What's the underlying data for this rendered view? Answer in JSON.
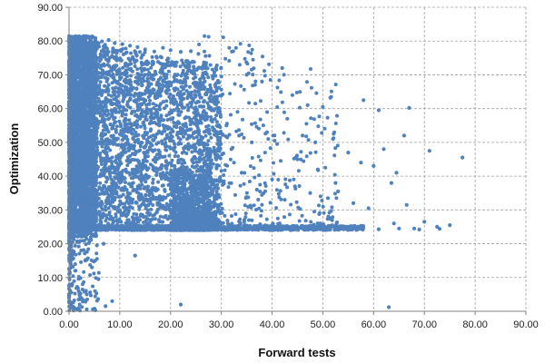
{
  "chart_data": {
    "type": "scatter",
    "title": "",
    "xlabel": "Forward tests",
    "ylabel": "Optimization",
    "xlim": [
      0,
      90
    ],
    "ylim": [
      0,
      90
    ],
    "x_ticks": [
      "0.00",
      "10.00",
      "20.00",
      "30.00",
      "40.00",
      "50.00",
      "60.00",
      "70.00",
      "80.00",
      "90.00"
    ],
    "y_ticks": [
      "0.00",
      "10.00",
      "20.00",
      "30.00",
      "40.00",
      "50.00",
      "60.00",
      "70.00",
      "80.00",
      "90.00"
    ],
    "grid": true,
    "legend": "none",
    "marker_color": "#4F81BD",
    "gridline_color": "#A0A0A0",
    "series": [
      {
        "points": [
          [
            1.0,
            80.5
          ],
          [
            1.5,
            81.2
          ],
          [
            2.3,
            79.8
          ],
          [
            3.1,
            80.6
          ],
          [
            4.0,
            79.5
          ],
          [
            5.2,
            80.1
          ],
          [
            6.5,
            79.9
          ],
          [
            7.8,
            80.3
          ],
          [
            9.0,
            79.4
          ],
          [
            10.5,
            79.1
          ],
          [
            12.0,
            78.6
          ],
          [
            13.5,
            78.2
          ],
          [
            15.0,
            77.5
          ],
          [
            16.8,
            76.9
          ],
          [
            18.5,
            78.0
          ],
          [
            20.0,
            77.3
          ],
          [
            22.0,
            76.8
          ],
          [
            24.0,
            77.0
          ],
          [
            25.5,
            76.2
          ],
          [
            27.0,
            73.5
          ],
          [
            2.0,
            75.0
          ],
          [
            4.5,
            72.0
          ],
          [
            7.0,
            70.5
          ],
          [
            9.5,
            68.0
          ],
          [
            12.5,
            71.0
          ],
          [
            15.5,
            69.0
          ],
          [
            18.0,
            65.5
          ],
          [
            21.0,
            66.0
          ],
          [
            24.5,
            67.5
          ],
          [
            26.5,
            62.0
          ],
          [
            30.0,
            69.5
          ],
          [
            35.0,
            70.0
          ],
          [
            38.0,
            68.0
          ],
          [
            42.0,
            72.0
          ],
          [
            44.0,
            64.0
          ],
          [
            47.0,
            61.0
          ],
          [
            50.0,
            60.5
          ],
          [
            58.0,
            62.5
          ],
          [
            61.0,
            59.5
          ],
          [
            67.0,
            60.2
          ],
          [
            3.0,
            65.0
          ],
          [
            6.0,
            60.0
          ],
          [
            8.5,
            58.0
          ],
          [
            11.0,
            55.0
          ],
          [
            14.0,
            57.0
          ],
          [
            17.0,
            52.0
          ],
          [
            19.5,
            54.0
          ],
          [
            23.0,
            55.5
          ],
          [
            26.0,
            51.0
          ],
          [
            29.0,
            58.0
          ],
          [
            31.0,
            55.0
          ],
          [
            33.5,
            52.0
          ],
          [
            36.0,
            50.0
          ],
          [
            39.0,
            53.0
          ],
          [
            41.0,
            49.5
          ],
          [
            43.0,
            57.0
          ],
          [
            46.0,
            52.0
          ],
          [
            48.5,
            50.0
          ],
          [
            52.0,
            51.0
          ],
          [
            55.0,
            47.0
          ],
          [
            62.0,
            48.0
          ],
          [
            66.0,
            52.0
          ],
          [
            71.0,
            47.5
          ],
          [
            77.5,
            45.5
          ],
          [
            57.5,
            44.0
          ],
          [
            60.0,
            43.0
          ],
          [
            64.5,
            41.0
          ],
          [
            52.5,
            38.0
          ],
          [
            49.0,
            42.0
          ],
          [
            45.0,
            45.0
          ],
          [
            2.5,
            50.0
          ],
          [
            5.0,
            45.0
          ],
          [
            7.5,
            42.0
          ],
          [
            10.0,
            40.0
          ],
          [
            12.0,
            46.0
          ],
          [
            14.5,
            43.0
          ],
          [
            16.5,
            38.0
          ],
          [
            18.5,
            41.0
          ],
          [
            21.5,
            44.0
          ],
          [
            24.0,
            39.0
          ],
          [
            27.5,
            42.0
          ],
          [
            30.5,
            38.5
          ],
          [
            32.5,
            44.0
          ],
          [
            34.0,
            41.0
          ],
          [
            37.0,
            36.0
          ],
          [
            40.0,
            39.0
          ],
          [
            42.5,
            33.0
          ],
          [
            44.5,
            37.0
          ],
          [
            47.5,
            35.0
          ],
          [
            51.0,
            33.5
          ],
          [
            53.0,
            35.5
          ],
          [
            56.0,
            32.0
          ],
          [
            59.0,
            30.5
          ],
          [
            63.5,
            38.0
          ],
          [
            66.5,
            31.5
          ],
          [
            70.0,
            26.5
          ],
          [
            72.5,
            25.0
          ],
          [
            75.0,
            25.5
          ],
          [
            68.0,
            24.5
          ],
          [
            64.0,
            26.0
          ],
          [
            1.2,
            35.0
          ],
          [
            2.8,
            33.0
          ],
          [
            4.2,
            30.0
          ],
          [
            6.2,
            28.0
          ],
          [
            8.0,
            32.0
          ],
          [
            9.8,
            29.5
          ],
          [
            11.5,
            27.0
          ],
          [
            13.8,
            31.0
          ],
          [
            15.8,
            28.5
          ],
          [
            17.8,
            26.5
          ],
          [
            19.8,
            30.0
          ],
          [
            21.8,
            27.5
          ],
          [
            23.5,
            33.0
          ],
          [
            24.8,
            29.0
          ],
          [
            25.8,
            26.0
          ],
          [
            28.5,
            27.5
          ],
          [
            31.5,
            25.5
          ],
          [
            34.5,
            26.5
          ],
          [
            38.5,
            25.0
          ],
          [
            41.5,
            26.0
          ],
          [
            2.0,
            24.5
          ],
          [
            5.5,
            24.2
          ],
          [
            9.0,
            24.4
          ],
          [
            13.0,
            24.3
          ],
          [
            17.0,
            24.5
          ],
          [
            21.0,
            24.2
          ],
          [
            25.0,
            24.4
          ],
          [
            29.0,
            24.3
          ],
          [
            33.0,
            24.5
          ],
          [
            37.0,
            24.2
          ],
          [
            41.0,
            24.4
          ],
          [
            45.0,
            24.3
          ],
          [
            49.0,
            24.5
          ],
          [
            53.0,
            24.2
          ],
          [
            57.0,
            24.4
          ],
          [
            61.0,
            24.3
          ],
          [
            65.0,
            24.5
          ],
          [
            69.0,
            24.2
          ],
          [
            73.0,
            24.4
          ],
          [
            55.5,
            24.6
          ],
          [
            0.8,
            22.0
          ],
          [
            1.6,
            20.5
          ],
          [
            2.4,
            18.0
          ],
          [
            3.2,
            15.0
          ],
          [
            4.5,
            13.0
          ],
          [
            5.5,
            19.5
          ],
          [
            6.8,
            20.0
          ],
          [
            1.2,
            12.0
          ],
          [
            0.6,
            8.0
          ],
          [
            1.9,
            6.0
          ],
          [
            2.6,
            3.5
          ],
          [
            0.4,
            2.0
          ],
          [
            1.1,
            1.0
          ],
          [
            3.5,
            5.0
          ],
          [
            5.8,
            9.5
          ],
          [
            7.2,
            1.5
          ],
          [
            8.5,
            3.0
          ],
          [
            13.0,
            16.5
          ],
          [
            22.0,
            2.0
          ],
          [
            63.0,
            1.2
          ],
          [
            0.3,
            45.0
          ],
          [
            0.5,
            60.0
          ],
          [
            0.7,
            70.0
          ],
          [
            0.9,
            55.0
          ],
          [
            0.4,
            30.0
          ],
          [
            0.6,
            40.0
          ],
          [
            0.2,
            25.0
          ],
          [
            0.8,
            78.0
          ],
          [
            1.4,
            68.0
          ],
          [
            1.8,
            58.0
          ]
        ]
      }
    ]
  }
}
